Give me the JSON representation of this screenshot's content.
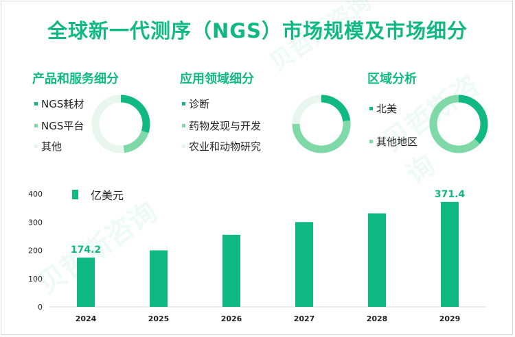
{
  "title": "全球新一代测序（NGS）市场规模及市场细分",
  "sections": [
    {
      "title": "产品和服务细分",
      "items": [
        {
          "label": "NGS耗材",
          "color": "#10b981",
          "value": 0.3
        },
        {
          "label": "NGS平台",
          "color": "#7ed9a6",
          "value": 0.18
        },
        {
          "label": "其他",
          "color": "#e8f7ee",
          "value": 0.52
        }
      ]
    },
    {
      "title": "应用领域细分",
      "items": [
        {
          "label": "诊断",
          "color": "#10b981",
          "value": 0.23
        },
        {
          "label": "药物发现与开发",
          "color": "#7ed9a6",
          "value": 0.52
        },
        {
          "label": "农业和动物研究",
          "color": "#e8f7ee",
          "value": 0.25
        }
      ]
    },
    {
      "title": "区域分析",
      "items": [
        {
          "label": "北美",
          "color": "#10b981",
          "value": 0.37
        },
        {
          "label": "其他地区",
          "color": "#7ed9a6",
          "value": 0.63
        }
      ]
    }
  ],
  "chart_data": {
    "type": "bar",
    "categories": [
      "2024",
      "2025",
      "2026",
      "2027",
      "2028",
      "2029"
    ],
    "series": [
      {
        "name": "亿美元",
        "values": [
          174.2,
          200,
          255,
          300,
          331,
          371.4
        ],
        "color": "#10b981"
      }
    ],
    "data_labels": [
      "174.2",
      "",
      "",
      "",
      "",
      "371.4"
    ],
    "yticks": [
      0,
      100,
      200,
      300,
      400
    ],
    "ylim": [
      0,
      400
    ],
    "grid": false,
    "legend_position": "top-left"
  }
}
